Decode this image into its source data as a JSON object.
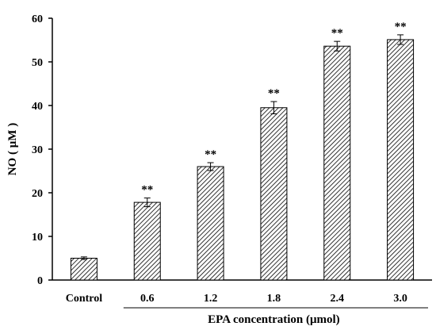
{
  "chart_data": {
    "type": "bar",
    "title": "",
    "categories": [
      "Control",
      "0.6",
      "1.2",
      "1.8",
      "2.4",
      "3.0"
    ],
    "values": [
      5.0,
      17.8,
      26.0,
      39.5,
      53.6,
      55.1
    ],
    "errors": [
      0.3,
      1.0,
      0.9,
      1.4,
      1.1,
      1.1
    ],
    "significance": [
      "",
      "**",
      "**",
      "**",
      "**",
      "**"
    ],
    "xlabel": "EPA concentration (μmol)",
    "ylabel": "NO ( μM )",
    "ylim": [
      0,
      60
    ],
    "yticks": [
      "0",
      "10",
      "20",
      "30",
      "40",
      "50",
      "60"
    ],
    "grid": false,
    "legend": "none",
    "bar_fill": "hatched",
    "colors": {
      "bar_stroke": "#000000",
      "hatch": "#000000",
      "background": "#ffffff"
    }
  }
}
